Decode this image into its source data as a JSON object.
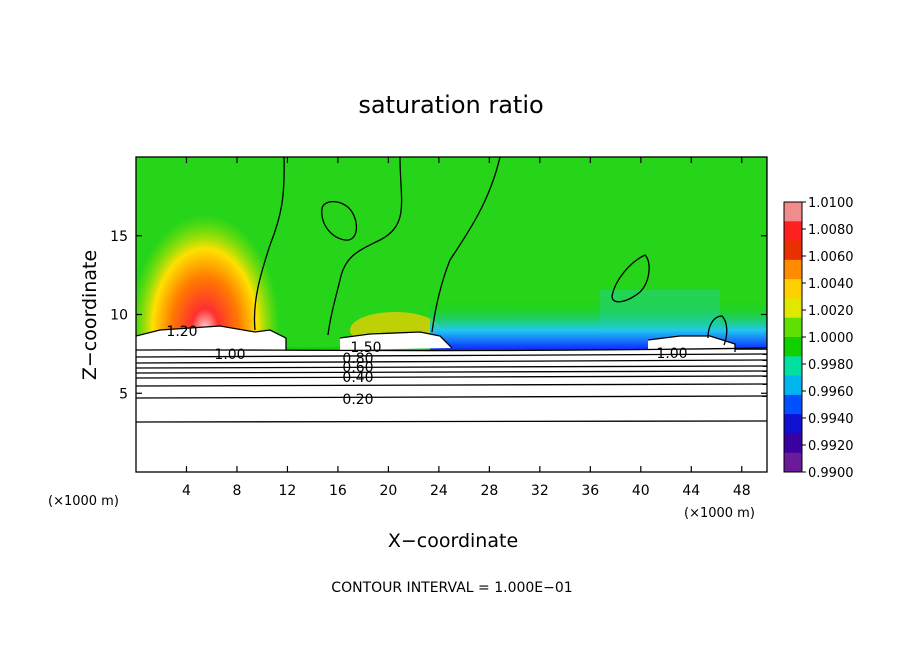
{
  "chart_data": {
    "type": "heatmap",
    "title": "saturation ratio",
    "xlabel": "X−coordinate",
    "ylabel": "Z−coordinate",
    "x_unit_left": "(×1000 m)",
    "x_unit_right": "(×1000 m)",
    "xlim": [
      0,
      50
    ],
    "ylim": [
      0,
      20
    ],
    "x_ticks": [
      4,
      8,
      12,
      16,
      20,
      24,
      28,
      32,
      36,
      40,
      44,
      48
    ],
    "y_ticks": [
      5,
      10,
      15
    ],
    "colorbar": {
      "ticks": [
        "1.0100",
        "1.0080",
        "1.0060",
        "1.0040",
        "1.0020",
        "1.0000",
        "0.9980",
        "0.9960",
        "0.9940",
        "0.9920",
        "0.9900"
      ],
      "colors": [
        "#f08c8c",
        "#ff2020",
        "#e83000",
        "#ff8c00",
        "#ffd000",
        "#e0e800",
        "#60e000",
        "#10d000",
        "#00e0a0",
        "#00b4f0",
        "#0050ff",
        "#1010d0",
        "#3a00a0",
        "#6a1a9a"
      ]
    },
    "contour_labels": [
      {
        "text": "1.20",
        "x": 3.7,
        "y": 8.8
      },
      {
        "text": "1.00",
        "x": 7.5,
        "y": 7.6
      },
      {
        "text": "1.00",
        "x": 42.0,
        "y": 7.6
      },
      {
        "text": "1.50",
        "x": 18.0,
        "y": 7.9
      },
      {
        "text": "0.80",
        "x": 17.5,
        "y": 7.3
      },
      {
        "text": "0.60",
        "x": 17.5,
        "y": 6.6
      },
      {
        "text": "0.40",
        "x": 17.5,
        "y": 5.9
      },
      {
        "text": "0.20",
        "x": 17.5,
        "y": 4.6
      }
    ],
    "contour_interval_text": "CONTOUR INTERVAL = 1.000E−01"
  }
}
